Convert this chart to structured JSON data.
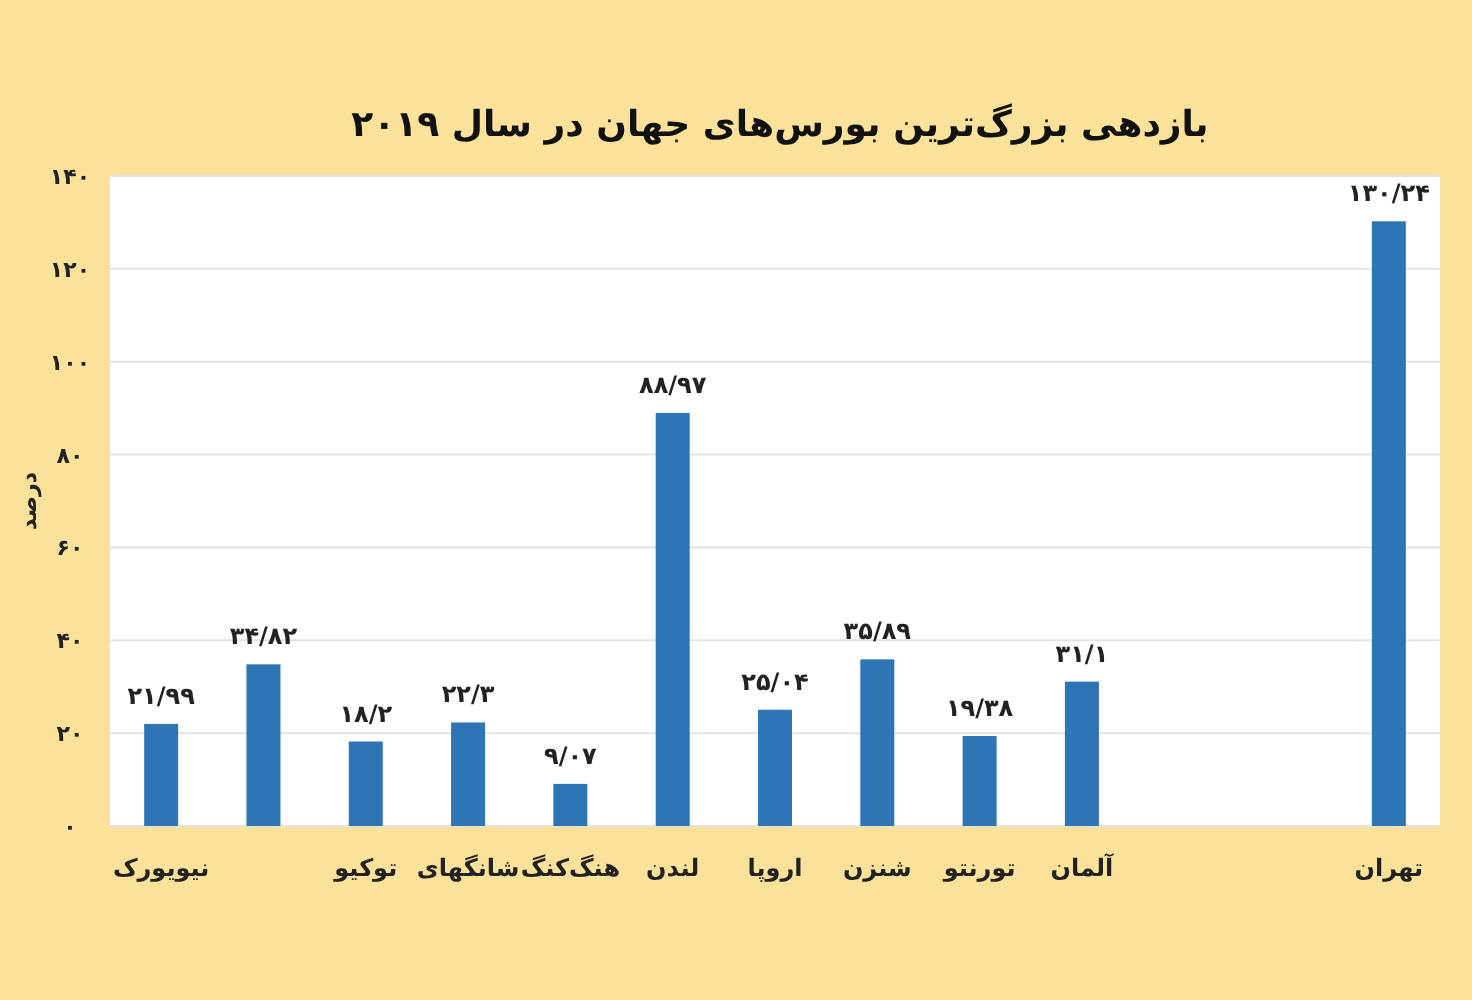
{
  "chart_data": {
    "type": "bar",
    "title": "بازدهی بزرگ‌ترین بورس‌های جهان در سال ۲۰۱۹",
    "ylabel": "درصد",
    "categories": [
      "نیویورک",
      null,
      "توکیو",
      "شانگهای",
      "هنگ‌کنگ",
      "لندن",
      "اروپا",
      "شنزن",
      "تورنتو",
      "آلمان",
      null,
      null,
      "تهران"
    ],
    "values": [
      21.99,
      34.82,
      18.2,
      22.3,
      9.07,
      88.97,
      25.04,
      35.89,
      19.38,
      31.1,
      null,
      null,
      130.24
    ],
    "value_labels": [
      "۲۱/۹۹",
      "۳۴/۸۲",
      "۱۸/۲",
      "۲۲/۳",
      "۹/۰۷",
      "۸۸/۹۷",
      "۲۵/۰۴",
      "۳۵/۸۹",
      "۱۹/۳۸",
      "۳۱/۱",
      null,
      null,
      "۱۳۰/۲۴"
    ],
    "color": "#2e75b6",
    "ylim": [
      0,
      140
    ],
    "yticks": [
      {
        "value": 0,
        "label": "۰"
      },
      {
        "value": 20,
        "label": "۲۰"
      },
      {
        "value": 40,
        "label": "۴۰"
      },
      {
        "value": 60,
        "label": "۶۰"
      },
      {
        "value": 80,
        "label": "۸۰"
      },
      {
        "value": 100,
        "label": "۱۰۰"
      },
      {
        "value": 120,
        "label": "۱۲۰"
      },
      {
        "value": 140,
        "label": "۱۴۰"
      }
    ],
    "grid": "y"
  }
}
